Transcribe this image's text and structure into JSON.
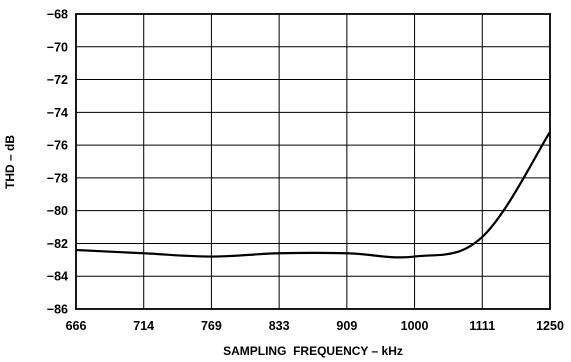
{
  "chart_data": {
    "type": "line",
    "title": "",
    "xlabel": "SAMPLING  FREQUENCY – kHz",
    "ylabel": "THD – dB",
    "x_ticks": [
      "666",
      "714",
      "769",
      "833",
      "909",
      "1000",
      "1111",
      "1250"
    ],
    "y_ticks": [
      "−68",
      "−70",
      "−72",
      "−74",
      "−76",
      "−78",
      "−80",
      "−82",
      "−84",
      "−86"
    ],
    "ylim": [
      -86,
      -68
    ],
    "x_scale": "categorical-evenly-spaced-ticks",
    "grid": true,
    "legend": "none",
    "series": [
      {
        "x": [
          "666",
          "714",
          "769",
          "833",
          "909",
          "1000",
          "1111",
          "1250"
        ],
        "values": [
          -82.4,
          -82.6,
          -82.8,
          -82.6,
          -82.6,
          -82.8,
          -81.6,
          -75.2
        ]
      }
    ]
  },
  "colors": {
    "line": "#000000",
    "grid": "#000000",
    "background": "#ffffff"
  }
}
